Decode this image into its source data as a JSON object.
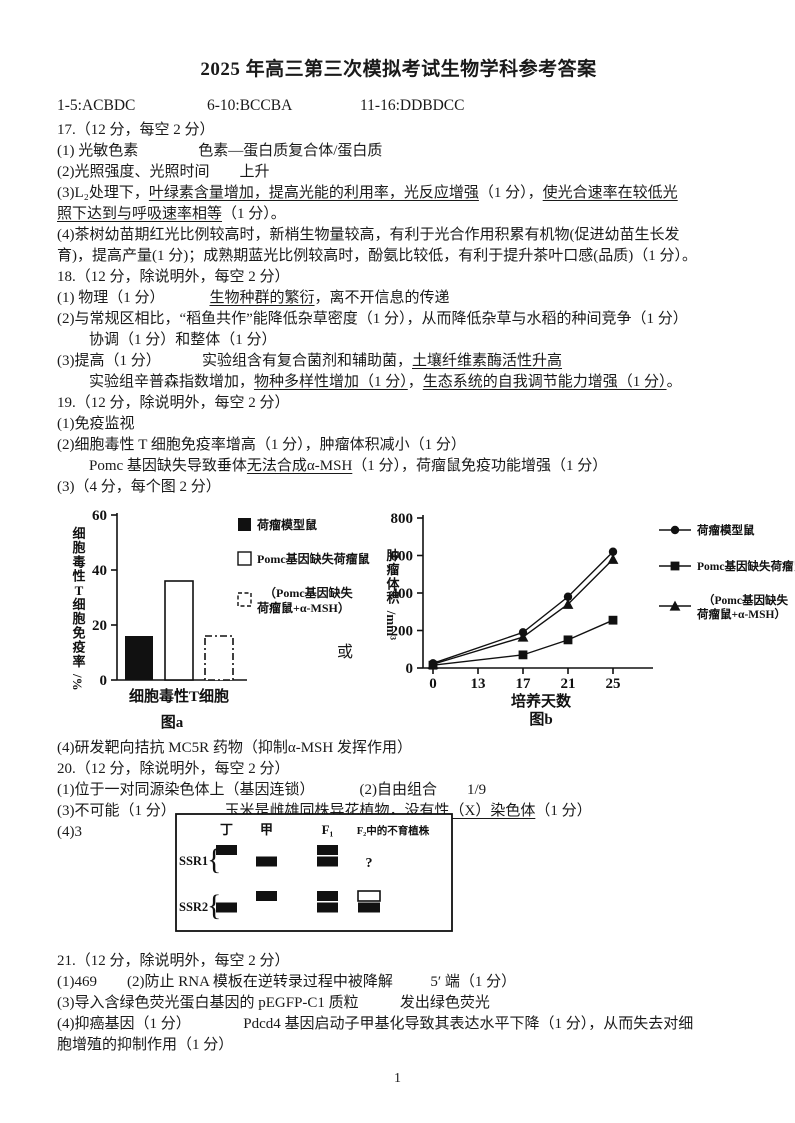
{
  "title": "2025 年高三第三次模拟考试生物学科参考答案",
  "answer_key": [
    "1-5:ACBDC",
    "6-10:BCCBA",
    "11-16:DDBDCC"
  ],
  "page_number": "1",
  "figures": {
    "connector": "或"
  },
  "ink_color": "#111111",
  "lines_top": [
    {
      "ind": 0,
      "seg": [
        {
          "t": "17.（12 分，每空 2 分）"
        }
      ]
    },
    {
      "ind": 0,
      "seg": [
        {
          "t": "(1) 光敏色素                色素—蛋白质复合体/蛋白质"
        }
      ]
    },
    {
      "ind": 0,
      "seg": [
        {
          "t": "(2)光照强度、光照时间        上升"
        }
      ]
    },
    {
      "ind": 0,
      "seg": [
        {
          "t": "(3)L₂处理下，"
        },
        {
          "t": "叶绿素含量增加，提高光能的利用率，光反应增强",
          "u": 1
        },
        {
          "t": "（1 分），"
        },
        {
          "t": "使光合速率在较低光",
          "u": 1
        }
      ]
    },
    {
      "ind": 0,
      "seg": [
        {
          "t": "照下达到与呼吸速率相等",
          "u": 1
        },
        {
          "t": "（1 分）。"
        }
      ]
    },
    {
      "ind": 0,
      "seg": [
        {
          "t": "(4)茶树幼苗期红光比例较高时，新梢生物量较高，有利于光合作用积累有机物(促进幼苗生长发"
        }
      ]
    },
    {
      "ind": 0,
      "seg": [
        {
          "t": "育)，提高产量(1 分)；成熟期蓝光比例较高时，酚氨比较低，有利于提升茶叶口感(品质)（1 分）。"
        }
      ]
    },
    {
      "ind": 0,
      "seg": [
        {
          "t": "18.（12 分，除说明外，每空 2 分）"
        }
      ]
    },
    {
      "ind": 0,
      "seg": [
        {
          "t": "(1) 物理（1 分）            "
        },
        {
          "t": "生物种群的繁衍",
          "u": 1
        },
        {
          "t": "，离不开信息的传递"
        }
      ]
    },
    {
      "ind": 0,
      "seg": [
        {
          "t": "(2)与常规区相比，“稻鱼共作”能降低杂草密度（1 分），从而降低杂草与水稻的种间竞争（1 分）"
        }
      ]
    },
    {
      "ind": 1,
      "seg": [
        {
          "t": "协调（1 分）和整体（1 分）"
        }
      ]
    },
    {
      "ind": 0,
      "seg": [
        {
          "t": "(3)提高（1 分）           实验组含有复合菌剂和辅助菌，"
        },
        {
          "t": "土壤纤维素酶活性升高",
          "u": 1
        }
      ]
    },
    {
      "ind": 1,
      "seg": [
        {
          "t": "实验组辛普森指数增加，"
        },
        {
          "t": "物种多样性增加（1 分）",
          "u": 1
        },
        {
          "t": "，"
        },
        {
          "t": "生态系统的自我调节能力增强（1 分）",
          "u": 1
        },
        {
          "t": "。"
        }
      ]
    },
    {
      "ind": 0,
      "seg": [
        {
          "t": "19.（12 分，除说明外，每空 2 分）"
        }
      ]
    },
    {
      "ind": 0,
      "seg": [
        {
          "t": "(1)免疫监视"
        }
      ]
    },
    {
      "ind": 0,
      "seg": [
        {
          "t": "(2)细胞毒性 T 细胞免疫率增高（1 分），肿瘤体积减小（1 分）"
        }
      ]
    },
    {
      "ind": 1,
      "seg": [
        {
          "t": "Pomc 基因缺失导致垂体"
        },
        {
          "t": "无法合成α-MSH",
          "u": 1
        },
        {
          "t": "（1 分），荷瘤鼠免疫功能增强（1 分）"
        }
      ]
    },
    {
      "ind": 0,
      "seg": [
        {
          "t": "(3)（4 分，每个图 2 分）"
        }
      ]
    }
  ],
  "lines_mid": [
    {
      "ind": 0,
      "seg": [
        {
          "t": "(4)研发靶向拮抗 MC5R 药物（抑制α-MSH 发挥作用）"
        }
      ]
    },
    {
      "ind": 0,
      "seg": [
        {
          "t": "20.（12 分，除说明外，每空 2 分）"
        }
      ]
    },
    {
      "ind": 0,
      "seg": [
        {
          "t": "(1)位于一对同源染色体上（基因连锁）            (2)自由组合        1/9"
        }
      ]
    },
    {
      "ind": 0,
      "seg": [
        {
          "t": "(3)不可能（1 分）             玉米是雌雄同株异花植物，"
        },
        {
          "t": "没有性（X）染色体",
          "u": 1
        },
        {
          "t": "（1 分）"
        }
      ]
    },
    {
      "ind": 0,
      "seg": [
        {
          "t": "(4)3"
        }
      ]
    }
  ],
  "lines_bottom": [
    {
      "ind": 0,
      "seg": [
        {
          "t": "21.（12 分，除说明外，每空 2 分）"
        }
      ]
    },
    {
      "ind": 0,
      "seg": [
        {
          "t": "(1)469        (2)防止 RNA 模板在逆转录过程中被降解          5′ 端（1 分）"
        }
      ]
    },
    {
      "ind": 0,
      "seg": [
        {
          "t": "(3)导入含绿色荧光蛋白基因的 pEGFP-C1 质粒           发出绿色荧光"
        }
      ]
    },
    {
      "ind": 0,
      "seg": [
        {
          "t": "(4)抑癌基因（1 分）              Pdcd4 基因启动子甲基化导致其表达水平下降（1 分），从而失去对细"
        }
      ]
    },
    {
      "ind": 0,
      "seg": [
        {
          "t": "胞增殖的抑制作用（1 分）"
        }
      ]
    }
  ],
  "chart_data": [
    {
      "id": "figure-a",
      "type": "bar",
      "title": "图a",
      "ylabel": "细胞毒性T细胞免疫率/%",
      "xlabel": "细胞毒性T细胞",
      "ylim": [
        0,
        60
      ],
      "yticks": [
        0,
        20,
        40,
        60
      ],
      "categories": [
        "细胞毒性T细胞"
      ],
      "legend_position": "upper-right",
      "grid": false,
      "series": [
        {
          "name": "荷瘤模型鼠",
          "name_lines": [
            "荷瘤模型鼠"
          ],
          "style": "solid-black",
          "values": [
            16
          ]
        },
        {
          "name": "Pomc基因缺失荷瘤鼠",
          "name_lines": [
            "Pomc基因缺失荷瘤鼠"
          ],
          "style": "open-white",
          "values": [
            36
          ]
        },
        {
          "name": "（Pomc基因缺失荷瘤鼠+α-MSH）",
          "name_lines": [
            "（Pomc基因缺失",
            "荷瘤鼠+α-MSH）"
          ],
          "style": "dashed-open",
          "values": [
            16
          ]
        }
      ]
    },
    {
      "id": "figure-b",
      "type": "line",
      "title": "图b",
      "ylabel": "肿瘤体积/mm³",
      "xlabel": "培养天数",
      "ylim": [
        0,
        800
      ],
      "yticks": [
        0,
        200,
        400,
        600,
        800
      ],
      "xticks": [
        0,
        13,
        17,
        21,
        25
      ],
      "x": [
        0,
        17,
        21,
        25
      ],
      "legend_position": "right",
      "grid": false,
      "series": [
        {
          "name": "荷瘤模型鼠",
          "name_lines": [
            "荷瘤模型鼠"
          ],
          "marker": "circle",
          "values": [
            25,
            190,
            380,
            620
          ]
        },
        {
          "name": "Pomc基因缺失荷瘤鼠",
          "name_lines": [
            "Pomc基因缺失荷瘤鼠"
          ],
          "marker": "square",
          "values": [
            15,
            70,
            150,
            255
          ]
        },
        {
          "name": "（Pomc基因缺失荷瘤鼠+α-MSH）",
          "name_lines": [
            "（Pomc基因缺失",
            "荷瘤鼠+α-MSH）"
          ],
          "marker": "triangle",
          "values": [
            20,
            165,
            340,
            580
          ]
        }
      ]
    }
  ],
  "gel": {
    "row_labels": [
      "SSR1",
      "SSR2"
    ],
    "lane_labels": [
      "丁",
      "甲",
      "F₁",
      "F₂中的不育植株"
    ],
    "unknown_mark": "?",
    "bands": [
      {
        "row": 0,
        "lane": 0,
        "level": 0,
        "fill": "black"
      },
      {
        "row": 0,
        "lane": 1,
        "level": 1,
        "fill": "black"
      },
      {
        "row": 0,
        "lane": 2,
        "level": 0,
        "fill": "black"
      },
      {
        "row": 0,
        "lane": 2,
        "level": 1,
        "fill": "black"
      },
      {
        "row": 1,
        "lane": 0,
        "level": 1,
        "fill": "black"
      },
      {
        "row": 1,
        "lane": 1,
        "level": 0,
        "fill": "black"
      },
      {
        "row": 1,
        "lane": 2,
        "level": 0,
        "fill": "black"
      },
      {
        "row": 1,
        "lane": 2,
        "level": 1,
        "fill": "black"
      },
      {
        "row": 1,
        "lane": 3,
        "level": 0,
        "fill": "white"
      },
      {
        "row": 1,
        "lane": 3,
        "level": 1,
        "fill": "black"
      }
    ]
  }
}
